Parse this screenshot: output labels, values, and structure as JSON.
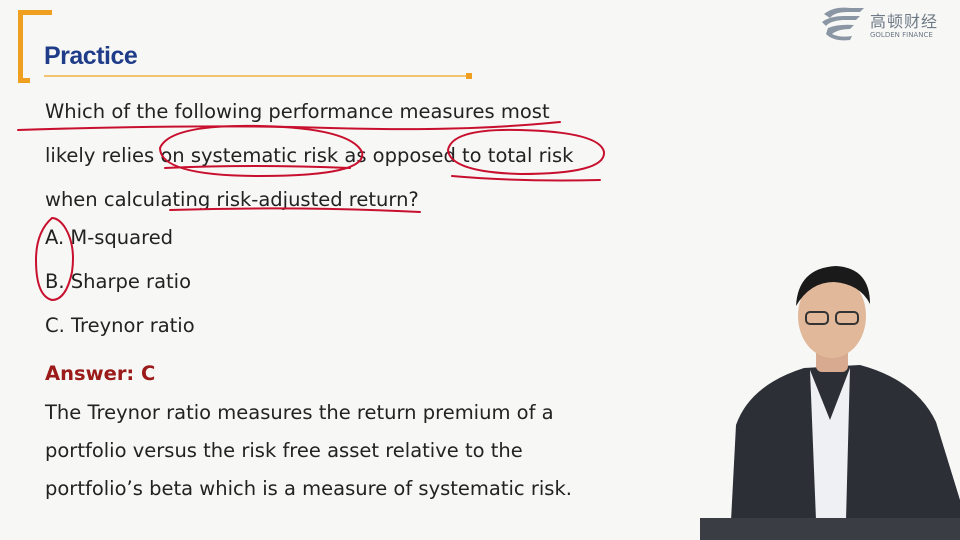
{
  "slide": {
    "title": "Practice",
    "logo": {
      "chinese": "高顿财经",
      "english": "GOLDEN FINANCE"
    },
    "question": "Which of the following performance measures most likely relies on systematic risk as opposed to total risk when calculating risk-adjusted return?",
    "options": [
      {
        "label": "A. M-squared"
      },
      {
        "label": "B. Sharpe ratio"
      },
      {
        "label": "C. Treynor ratio"
      }
    ],
    "answer": "Answer: C",
    "explanation": "The Treynor ratio measures the return premium of a portfolio versus the risk free asset relative to the portfolio’s beta which is a measure of systematic risk."
  },
  "colors": {
    "title": "#1f3c88",
    "accent": "#f0a020",
    "answer": "#9b1a1a",
    "annotation": "#c8102e",
    "text": "#222222"
  },
  "icons": [
    "golden-finance-logo-icon",
    "presenter-video"
  ]
}
